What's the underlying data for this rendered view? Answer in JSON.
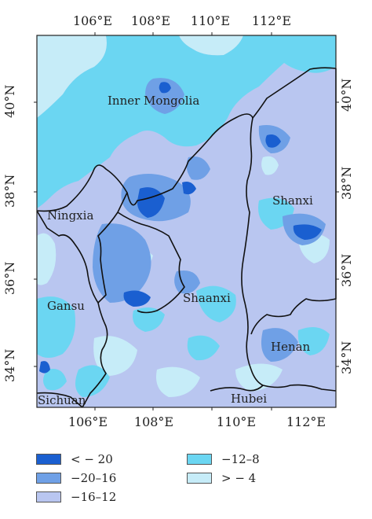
{
  "map": {
    "lon_labels": [
      "106°E",
      "108°E",
      "110°E",
      "112°E"
    ],
    "lat_labels": [
      "34°N",
      "36°N",
      "38°N",
      "40°N"
    ],
    "regions": [
      {
        "name": "Inner Mongolia"
      },
      {
        "name": "Ningxia"
      },
      {
        "name": "Shanxi"
      },
      {
        "name": "Shaanxi"
      },
      {
        "name": "Gansu"
      },
      {
        "name": "Henan"
      },
      {
        "name": "Sichuan"
      },
      {
        "name": "Hubei"
      }
    ],
    "colors": {
      "lt_neg20": "#1a5fd0",
      "neg20_16": "#6fa0e6",
      "neg16_12": "#b9c6f0",
      "neg12_8": "#6bd6f2",
      "gt_neg4": "#c6ecf8",
      "boundary": "#111111"
    }
  },
  "legend": {
    "items": [
      {
        "label": "< − 20",
        "color": "#1a5fd0"
      },
      {
        "label": "−20–16",
        "color": "#6fa0e6"
      },
      {
        "label": "−16–12",
        "color": "#b9c6f0"
      },
      {
        "label": "−12–8",
        "color": "#6bd6f2"
      },
      {
        "label": "> − 4",
        "color": "#c6ecf8"
      }
    ]
  }
}
